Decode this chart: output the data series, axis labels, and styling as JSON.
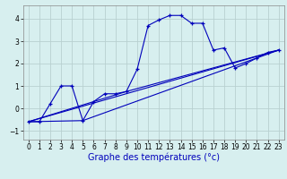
{
  "background_color": "#d7efef",
  "grid_color": "#b8d0d0",
  "line_color": "#0000bb",
  "xlabel": "Graphe des températures (°c)",
  "xlabel_fontsize": 7,
  "ylim": [
    -1.4,
    4.6
  ],
  "xlim": [
    -0.5,
    23.5
  ],
  "yticks": [
    -1,
    0,
    1,
    2,
    3,
    4
  ],
  "xticks": [
    0,
    1,
    2,
    3,
    4,
    5,
    6,
    7,
    8,
    9,
    10,
    11,
    12,
    13,
    14,
    15,
    16,
    17,
    18,
    19,
    20,
    21,
    22,
    23
  ],
  "tick_fontsize": 5.5,
  "main_line_x": [
    0,
    1,
    2,
    3,
    4,
    5,
    6,
    7,
    8,
    9,
    10,
    11,
    12,
    13,
    14,
    15,
    16,
    17,
    18,
    19,
    20,
    21,
    22,
    23
  ],
  "main_line_y": [
    -0.6,
    -0.6,
    0.2,
    1.0,
    1.0,
    -0.55,
    0.3,
    0.65,
    0.65,
    0.75,
    1.75,
    3.7,
    3.95,
    4.15,
    4.15,
    3.8,
    3.8,
    2.6,
    2.7,
    1.8,
    2.0,
    2.25,
    2.5,
    2.6
  ],
  "line1_x": [
    0,
    23
  ],
  "line1_y": [
    -0.6,
    2.6
  ],
  "line2_x": [
    0,
    5,
    23
  ],
  "line2_y": [
    -0.6,
    -0.55,
    2.6
  ],
  "line3_x": [
    0,
    9,
    23
  ],
  "line3_y": [
    -0.6,
    0.75,
    2.6
  ]
}
